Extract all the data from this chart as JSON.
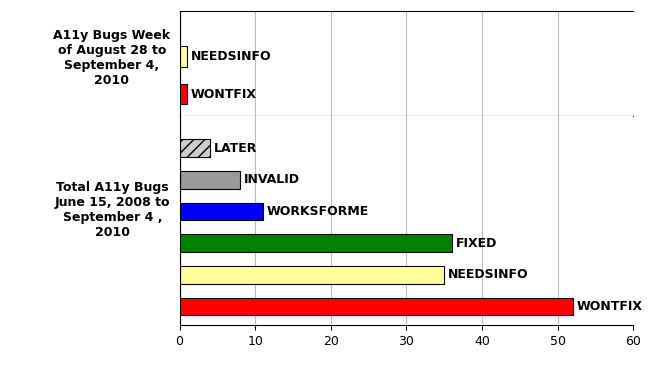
{
  "group1_label": "A11y Bugs Week\nof August 28 to\nSeptember 4,\n2010",
  "group2_label": "Total A11y Bugs\nJune 15, 2008 to\nSeptember 4 ,\n2010",
  "group1_bars": [
    {
      "label": "NEEDSINFO",
      "value": 1,
      "color": "#ffff99",
      "hatch": ""
    },
    {
      "label": "WONTFIX",
      "value": 1,
      "color": "#ff0000",
      "hatch": ""
    }
  ],
  "group2_bars": [
    {
      "label": "LATER",
      "value": 4,
      "color": "#cccccc",
      "hatch": "///"
    },
    {
      "label": "INVALID",
      "value": 8,
      "color": "#999999",
      "hatch": ""
    },
    {
      "label": "WORKSFORME",
      "value": 11,
      "color": "#0000ff",
      "hatch": ""
    },
    {
      "label": "FIXED",
      "value": 36,
      "color": "#008000",
      "hatch": ""
    },
    {
      "label": "NEEDSINFO",
      "value": 35,
      "color": "#ffff99",
      "hatch": ""
    },
    {
      "label": "WONTFIX",
      "value": 52,
      "color": "#ff0000",
      "hatch": ""
    }
  ],
  "xlim": [
    0,
    60
  ],
  "xticks": [
    0,
    10,
    20,
    30,
    40,
    50,
    60
  ],
  "background_color": "#ffffff",
  "grid_color": "#bbbbbb",
  "label_fontsize": 9,
  "tick_fontsize": 9,
  "bar_height": 0.55
}
